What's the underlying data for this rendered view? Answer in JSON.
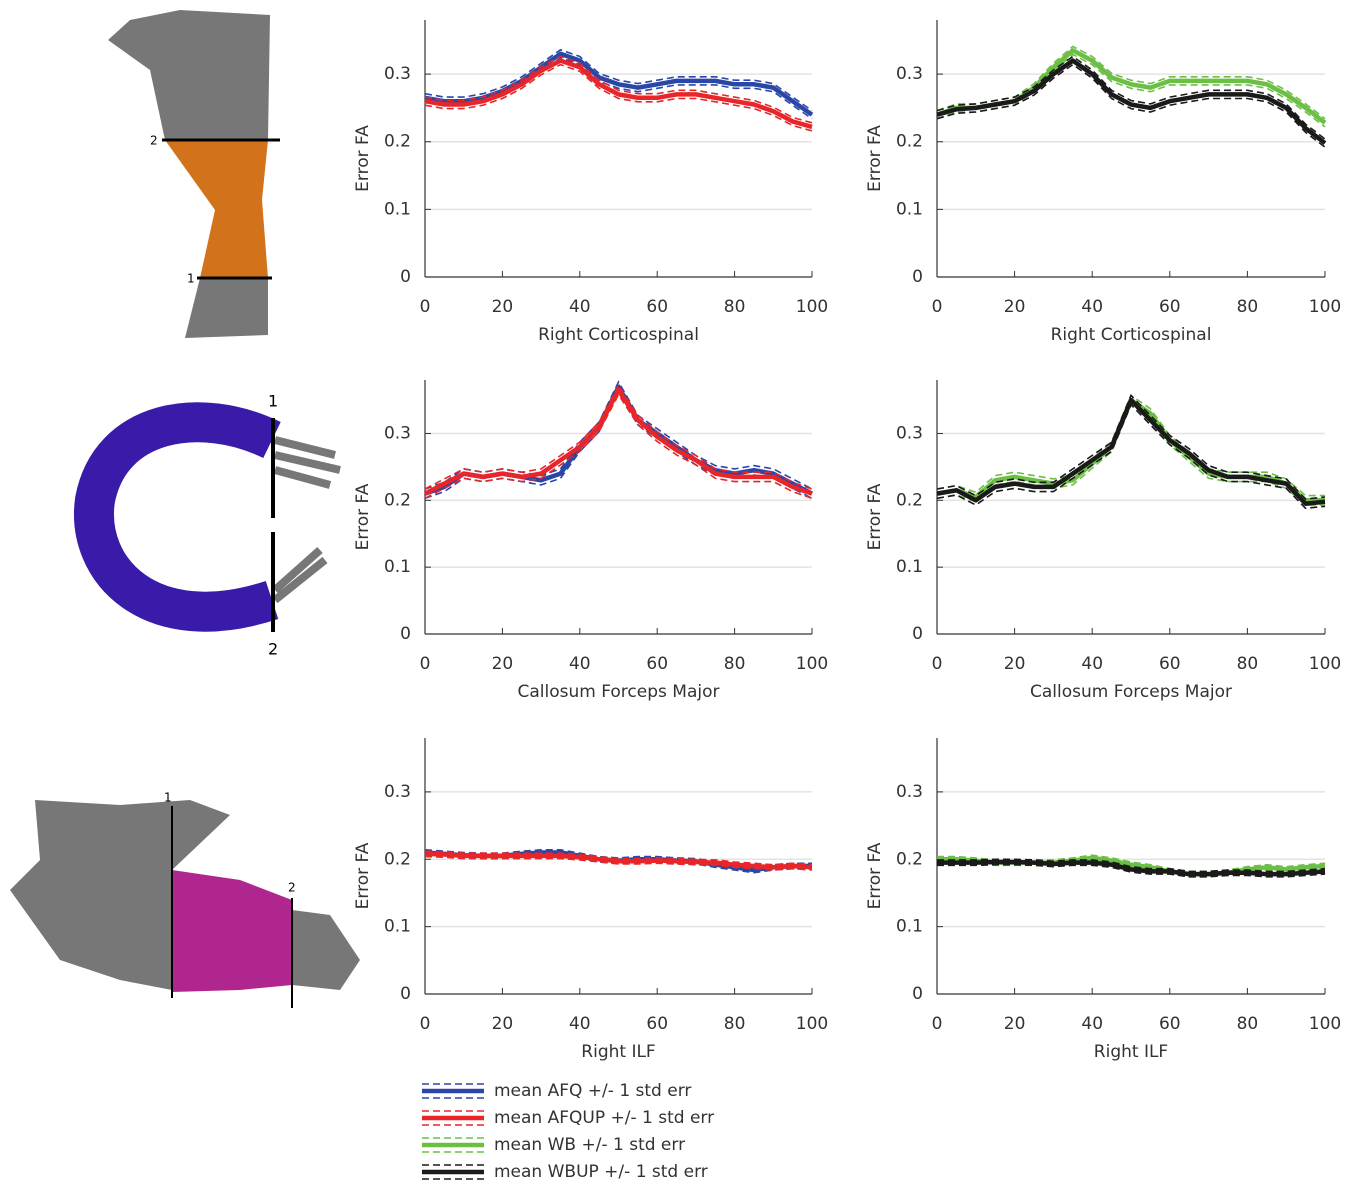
{
  "chart_data": [
    {
      "type": "line",
      "x_label": "Right Corticospinal",
      "y_label": "Error FA",
      "x": [
        0,
        5,
        10,
        15,
        20,
        25,
        30,
        35,
        40,
        45,
        50,
        55,
        60,
        65,
        70,
        75,
        80,
        85,
        90,
        95,
        100
      ],
      "xlim": [
        0,
        100
      ],
      "xticks": [
        0,
        20,
        40,
        60,
        80,
        100
      ],
      "ylim": [
        0,
        0.38
      ],
      "yticks": [
        0,
        0.1,
        0.2,
        0.3
      ],
      "grid": true,
      "series": [
        {
          "name": "mean AFQ +/- 1 std err",
          "color": "#2a47a8",
          "stderr": 0.006,
          "values": [
            0.265,
            0.26,
            0.26,
            0.265,
            0.275,
            0.29,
            0.31,
            0.33,
            0.32,
            0.295,
            0.285,
            0.28,
            0.285,
            0.29,
            0.29,
            0.29,
            0.285,
            0.285,
            0.28,
            0.26,
            0.24
          ]
        },
        {
          "name": "mean AFQUP +/- 1 std err",
          "color": "#e8262a",
          "stderr": 0.006,
          "values": [
            0.26,
            0.255,
            0.255,
            0.26,
            0.27,
            0.285,
            0.305,
            0.32,
            0.31,
            0.285,
            0.27,
            0.265,
            0.265,
            0.27,
            0.27,
            0.265,
            0.26,
            0.255,
            0.245,
            0.23,
            0.222
          ]
        }
      ]
    },
    {
      "type": "line",
      "x_label": "Right Corticospinal",
      "y_label": "Error FA",
      "x": [
        0,
        5,
        10,
        15,
        20,
        25,
        30,
        35,
        40,
        45,
        50,
        55,
        60,
        65,
        70,
        75,
        80,
        85,
        90,
        95,
        100
      ],
      "xlim": [
        0,
        100
      ],
      "xticks": [
        0,
        20,
        40,
        60,
        80,
        100
      ],
      "ylim": [
        0,
        0.38
      ],
      "yticks": [
        0,
        0.1,
        0.2,
        0.3
      ],
      "grid": true,
      "series": [
        {
          "name": "mean WB +/- 1 std err",
          "color": "#6cbf45",
          "stderr": 0.006,
          "values": [
            0.24,
            0.25,
            0.25,
            0.255,
            0.26,
            0.28,
            0.31,
            0.335,
            0.32,
            0.295,
            0.285,
            0.28,
            0.29,
            0.29,
            0.29,
            0.29,
            0.29,
            0.285,
            0.27,
            0.25,
            0.228
          ]
        },
        {
          "name": "mean WBUP +/- 1 std err",
          "color": "#1a1a1a",
          "stderr": 0.006,
          "values": [
            0.24,
            0.248,
            0.25,
            0.255,
            0.26,
            0.275,
            0.3,
            0.32,
            0.3,
            0.27,
            0.255,
            0.25,
            0.26,
            0.265,
            0.27,
            0.27,
            0.27,
            0.265,
            0.25,
            0.22,
            0.198
          ]
        }
      ]
    },
    {
      "type": "line",
      "x_label": "Callosum Forceps Major",
      "y_label": "Error FA",
      "x": [
        0,
        5,
        10,
        15,
        20,
        25,
        30,
        35,
        40,
        45,
        50,
        55,
        60,
        65,
        70,
        75,
        80,
        85,
        90,
        95,
        100
      ],
      "xlim": [
        0,
        100
      ],
      "xticks": [
        0,
        20,
        40,
        60,
        80,
        100
      ],
      "ylim": [
        0,
        0.38
      ],
      "yticks": [
        0,
        0.1,
        0.2,
        0.3
      ],
      "grid": true,
      "series": [
        {
          "color": "#2a47a8",
          "stderr": 0.007,
          "values": [
            0.21,
            0.22,
            0.24,
            0.235,
            0.24,
            0.235,
            0.23,
            0.24,
            0.28,
            0.31,
            0.37,
            0.32,
            0.3,
            0.28,
            0.26,
            0.245,
            0.24,
            0.245,
            0.24,
            0.225,
            0.21
          ]
        },
        {
          "color": "#e8262a",
          "stderr": 0.007,
          "values": [
            0.21,
            0.225,
            0.24,
            0.235,
            0.24,
            0.235,
            0.24,
            0.26,
            0.28,
            0.31,
            0.365,
            0.32,
            0.295,
            0.275,
            0.26,
            0.24,
            0.235,
            0.235,
            0.235,
            0.22,
            0.21
          ]
        }
      ]
    },
    {
      "type": "line",
      "x_label": "Callosum Forceps Major",
      "y_label": "Error FA",
      "x": [
        0,
        5,
        10,
        15,
        20,
        25,
        30,
        35,
        40,
        45,
        50,
        55,
        60,
        65,
        70,
        75,
        80,
        85,
        90,
        95,
        100
      ],
      "xlim": [
        0,
        100
      ],
      "xticks": [
        0,
        20,
        40,
        60,
        80,
        100
      ],
      "ylim": [
        0,
        0.38
      ],
      "yticks": [
        0,
        0.1,
        0.2,
        0.3
      ],
      "grid": true,
      "series": [
        {
          "color": "#6cbf45",
          "stderr": 0.007,
          "values": [
            0.21,
            0.215,
            0.205,
            0.23,
            0.235,
            0.23,
            0.225,
            0.23,
            0.255,
            0.28,
            0.35,
            0.33,
            0.29,
            0.265,
            0.24,
            0.235,
            0.235,
            0.235,
            0.225,
            0.2,
            0.2
          ]
        },
        {
          "color": "#1a1a1a",
          "stderr": 0.007,
          "values": [
            0.21,
            0.215,
            0.2,
            0.22,
            0.225,
            0.22,
            0.22,
            0.24,
            0.26,
            0.28,
            0.35,
            0.32,
            0.29,
            0.27,
            0.245,
            0.235,
            0.235,
            0.23,
            0.225,
            0.195,
            0.198
          ]
        }
      ]
    },
    {
      "type": "line",
      "x_label": "Right ILF",
      "y_label": "Error FA",
      "x": [
        0,
        5,
        10,
        15,
        20,
        25,
        30,
        35,
        40,
        45,
        50,
        55,
        60,
        65,
        70,
        75,
        80,
        85,
        90,
        95,
        100
      ],
      "xlim": [
        0,
        100
      ],
      "xticks": [
        0,
        20,
        40,
        60,
        80,
        100
      ],
      "ylim": [
        0,
        0.38
      ],
      "yticks": [
        0,
        0.1,
        0.2,
        0.3
      ],
      "grid": true,
      "series": [
        {
          "color": "#2a47a8",
          "stderr": 0.004,
          "values": [
            0.21,
            0.208,
            0.206,
            0.205,
            0.205,
            0.208,
            0.21,
            0.21,
            0.205,
            0.2,
            0.198,
            0.2,
            0.2,
            0.198,
            0.197,
            0.192,
            0.188,
            0.184,
            0.188,
            0.19,
            0.19
          ]
        },
        {
          "color": "#e8262a",
          "stderr": 0.004,
          "values": [
            0.208,
            0.207,
            0.205,
            0.205,
            0.205,
            0.205,
            0.205,
            0.205,
            0.203,
            0.2,
            0.197,
            0.197,
            0.198,
            0.197,
            0.196,
            0.195,
            0.192,
            0.19,
            0.188,
            0.19,
            0.188
          ]
        }
      ]
    },
    {
      "type": "line",
      "x_label": "Right ILF",
      "y_label": "Error FA",
      "x": [
        0,
        5,
        10,
        15,
        20,
        25,
        30,
        35,
        40,
        45,
        50,
        55,
        60,
        65,
        70,
        75,
        80,
        85,
        90,
        95,
        100
      ],
      "xlim": [
        0,
        100
      ],
      "xticks": [
        0,
        20,
        40,
        60,
        80,
        100
      ],
      "ylim": [
        0,
        0.38
      ],
      "yticks": [
        0,
        0.1,
        0.2,
        0.3
      ],
      "grid": true,
      "series": [
        {
          "color": "#6cbf45",
          "stderr": 0.004,
          "values": [
            0.2,
            0.2,
            0.198,
            0.195,
            0.195,
            0.195,
            0.195,
            0.198,
            0.202,
            0.198,
            0.192,
            0.188,
            0.182,
            0.178,
            0.178,
            0.18,
            0.185,
            0.188,
            0.185,
            0.188,
            0.19
          ]
        },
        {
          "color": "#1a1a1a",
          "stderr": 0.004,
          "values": [
            0.195,
            0.195,
            0.195,
            0.196,
            0.196,
            0.195,
            0.193,
            0.195,
            0.195,
            0.192,
            0.185,
            0.182,
            0.182,
            0.178,
            0.178,
            0.18,
            0.18,
            0.178,
            0.178,
            0.18,
            0.182
          ]
        }
      ]
    }
  ],
  "tract_images": [
    {
      "cut_labels": [
        "2",
        "1"
      ]
    },
    {
      "cut_labels": [
        "1",
        "2"
      ]
    },
    {
      "cut_labels": [
        "1",
        "2"
      ]
    }
  ]
}
